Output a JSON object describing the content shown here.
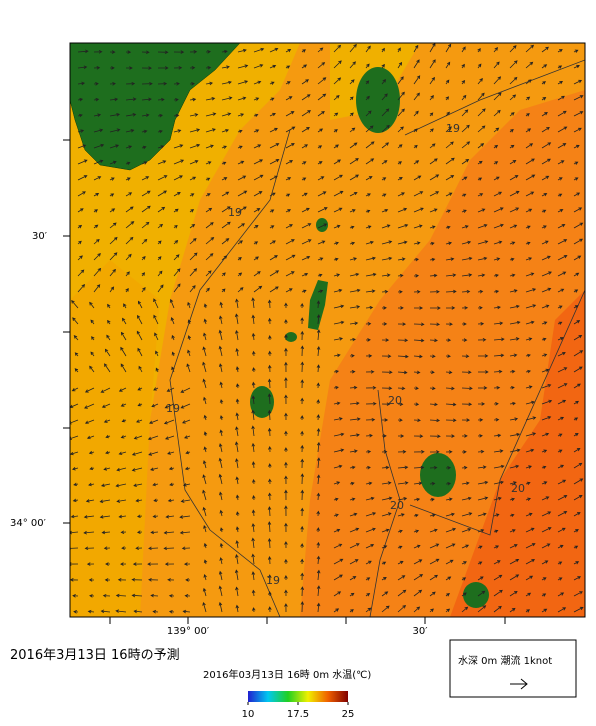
{
  "title": "2016年3月13日 16時の予測",
  "map": {
    "caption": "2016年03月13日 16時 0m 水温(℃)",
    "lat_labels": [
      "30′",
      "34° 00′"
    ],
    "lon_labels": [
      "139° 00′",
      "30′"
    ],
    "contour_labels": [
      19,
      19,
      19,
      19,
      20,
      20,
      20
    ],
    "legend": "水深 0m 潮流 1knot",
    "colorbar": {
      "lim": [
        10,
        25
      ],
      "ticks": [
        10,
        17.5,
        25
      ]
    }
  }
}
